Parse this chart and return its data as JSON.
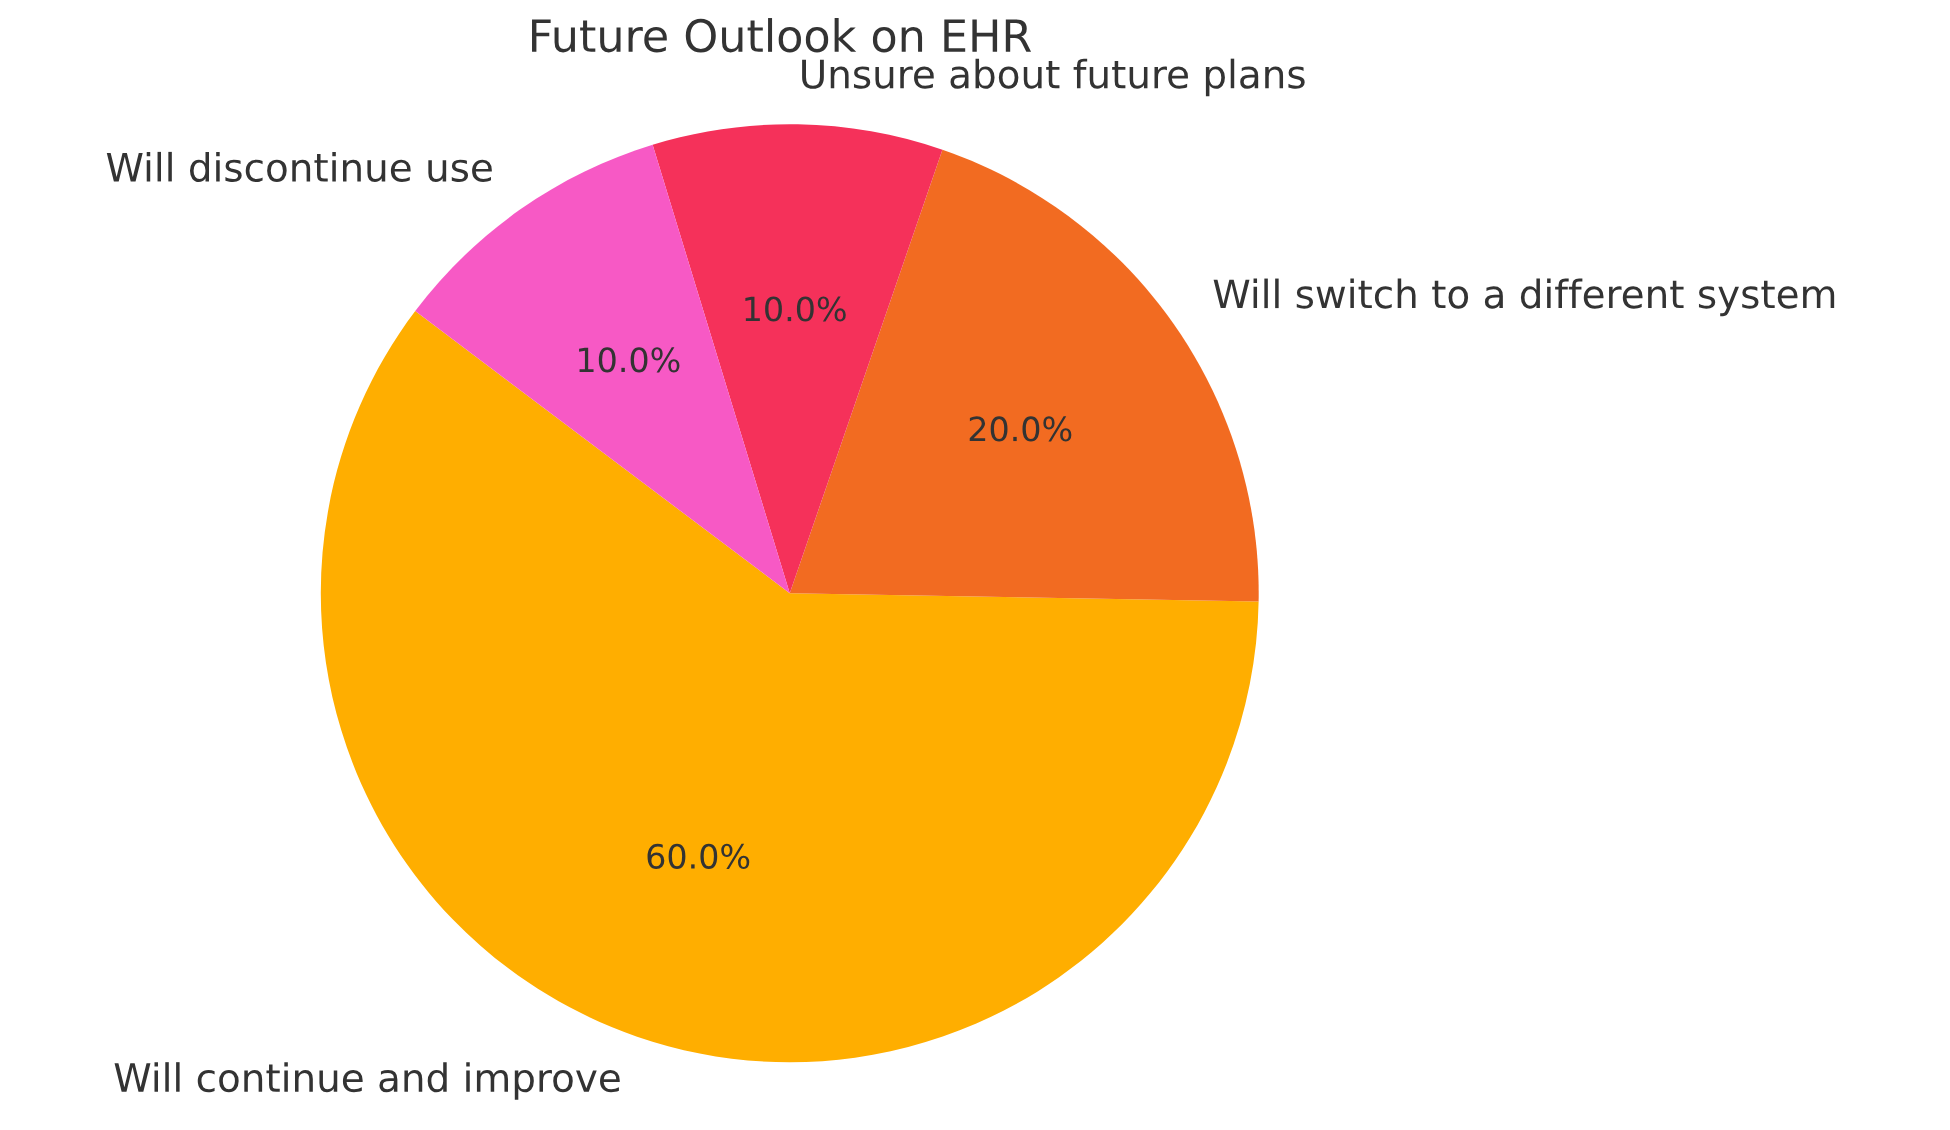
{
  "chart_data": {
    "type": "pie",
    "title": "Future Outlook on EHR",
    "categories": [
      "Will continue and improve",
      "Will switch to a different system",
      "Unsure about future plans",
      "Will discontinue use"
    ],
    "values": [
      60,
      20,
      10,
      10
    ],
    "colors": [
      "#ffae00",
      "#f26b21",
      "#f5315a",
      "#f759c5"
    ],
    "value_labels": [
      "60.0%",
      "20.0%",
      "10.0%",
      "10.0%"
    ]
  }
}
